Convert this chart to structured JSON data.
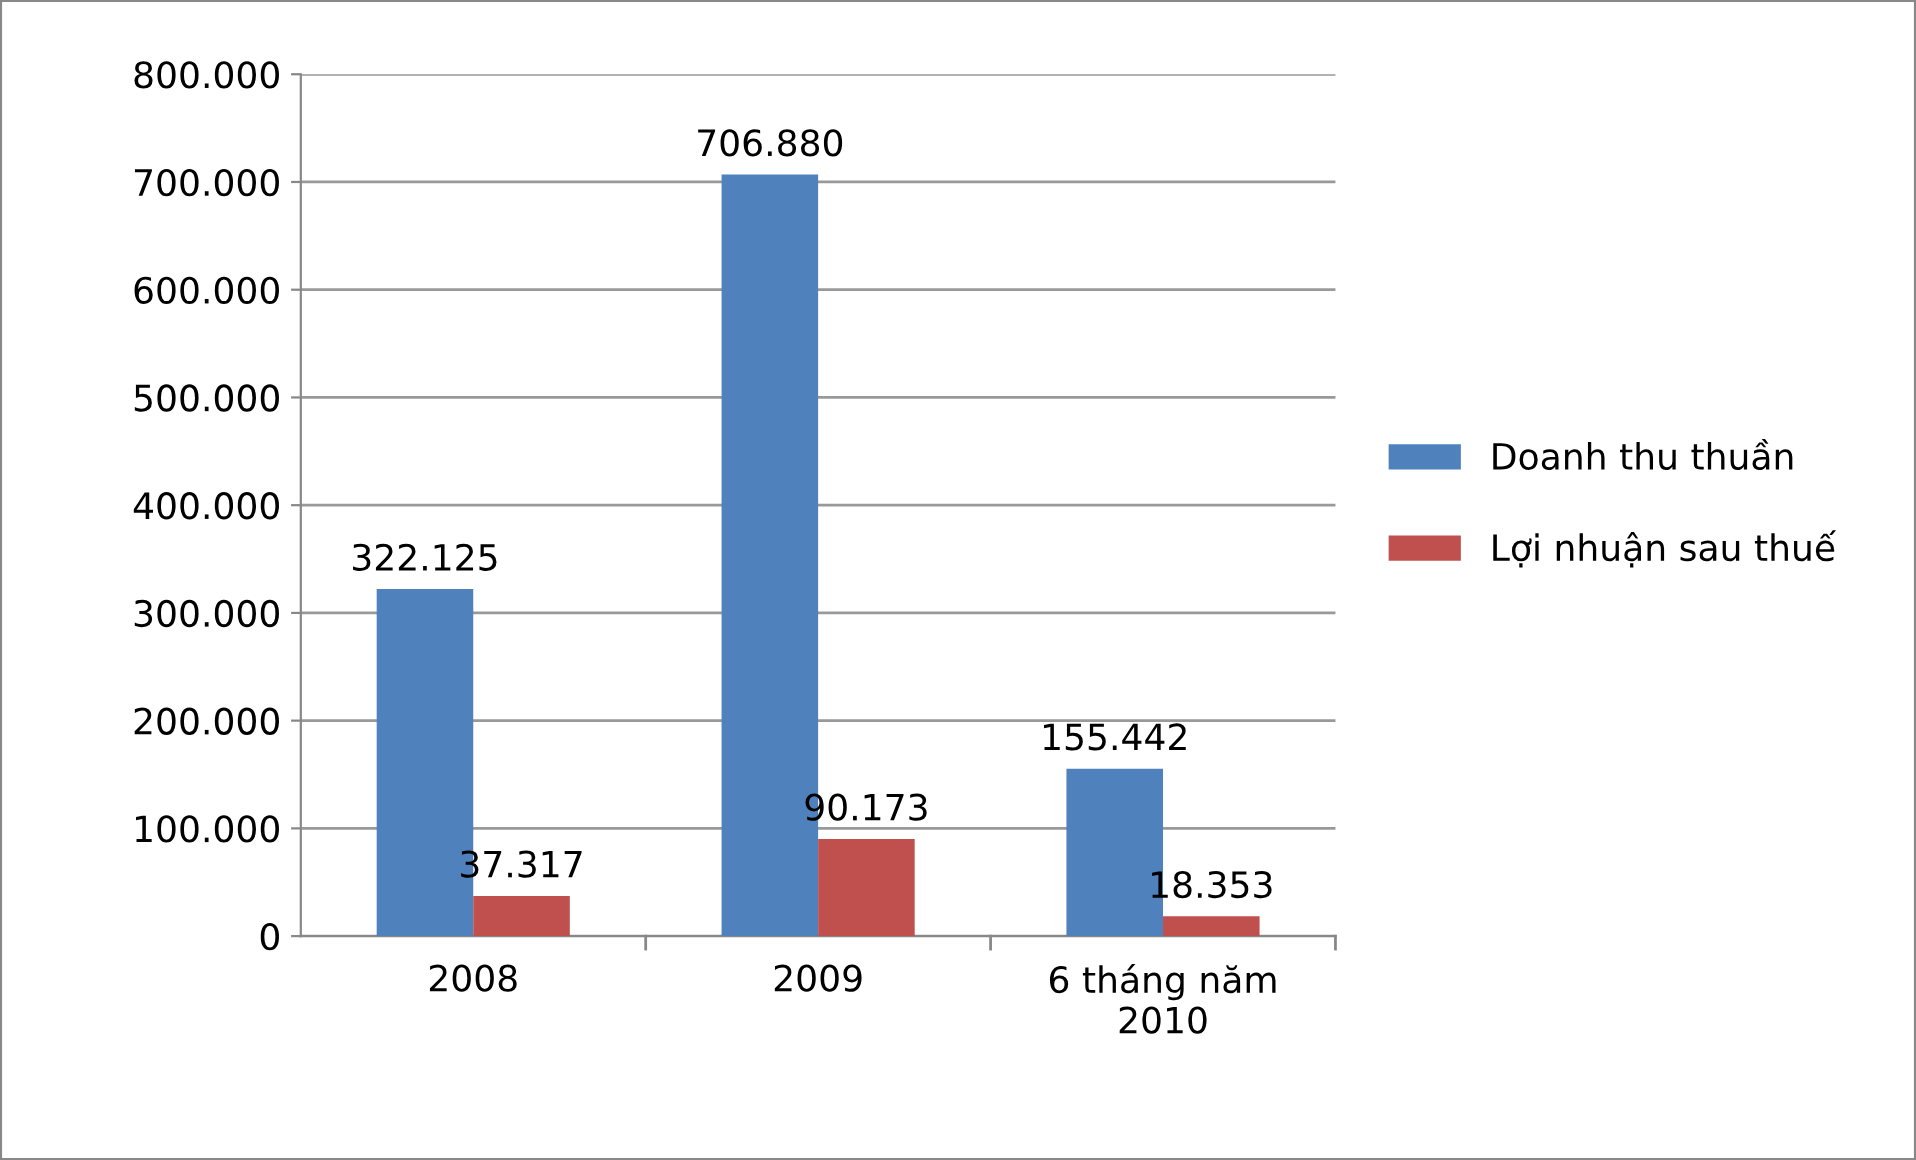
{
  "chart_data": {
    "type": "bar",
    "categories": [
      "2008",
      "2009",
      "6 tháng năm\n2010"
    ],
    "series": [
      {
        "name": "Doanh thu thuần",
        "color": "#4f81bd",
        "values": [
          322125,
          706880,
          155442
        ],
        "value_labels": [
          "322.125",
          "706.880",
          "155.442"
        ]
      },
      {
        "name": "Lợi nhuận sau thuế",
        "color": "#c0504d",
        "values": [
          37317,
          90173,
          18353
        ],
        "value_labels": [
          "37.317",
          "90.173",
          "18.353"
        ]
      }
    ],
    "ylim": [
      0,
      800000
    ],
    "yticks": [
      {
        "value": 0,
        "label": "0"
      },
      {
        "value": 100000,
        "label": "100.000"
      },
      {
        "value": 200000,
        "label": "200.000"
      },
      {
        "value": 300000,
        "label": "300.000"
      },
      {
        "value": 400000,
        "label": "400.000"
      },
      {
        "value": 500000,
        "label": "500.000"
      },
      {
        "value": 600000,
        "label": "600.000"
      },
      {
        "value": 700000,
        "label": "700.000"
      },
      {
        "value": 800000,
        "label": "800.000"
      }
    ],
    "grid": "y",
    "legend": "right"
  }
}
